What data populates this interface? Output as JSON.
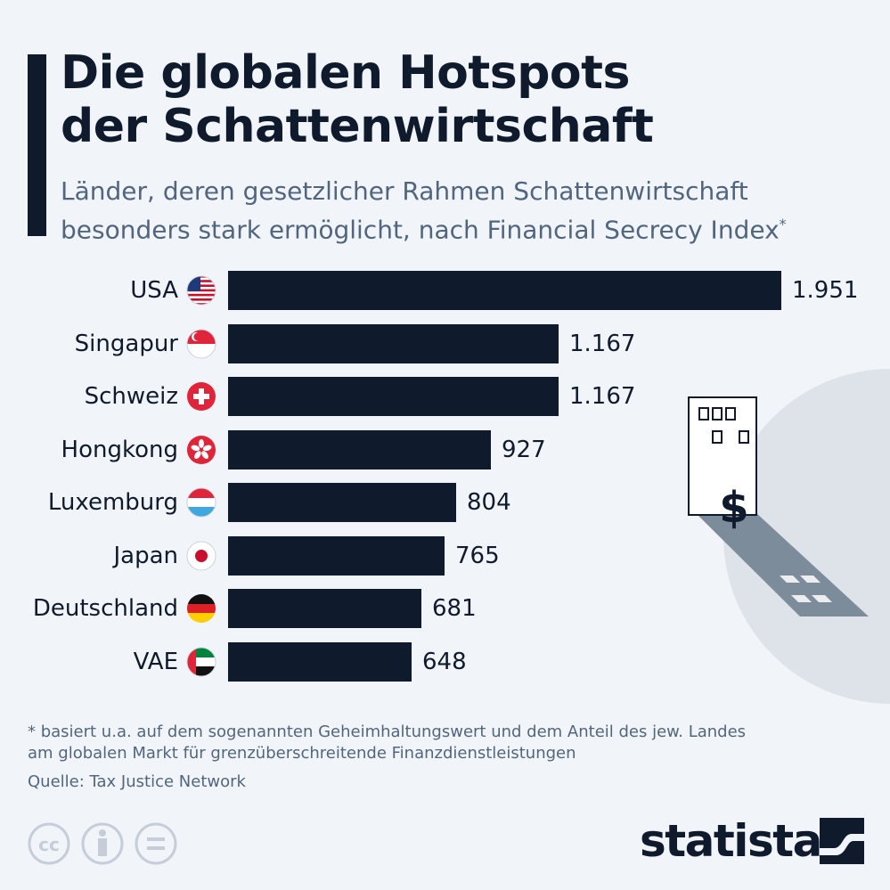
{
  "header": {
    "title_line1": "Die globalen Hotspots",
    "title_line2": "der Schattenwirtschaft",
    "subtitle_line1": "Länder, deren gesetzlicher Rahmen Schattenwirtschaft",
    "subtitle_line2": "besonders stark ermöglicht, nach Financial Secrecy Index",
    "subtitle_mark": "*"
  },
  "chart_data": {
    "type": "bar",
    "orientation": "horizontal",
    "categories": [
      "USA",
      "Singapur",
      "Schweiz",
      "Hongkong",
      "Luxemburg",
      "Japan",
      "Deutschland",
      "VAE"
    ],
    "value_labels": [
      "1.951",
      "1.167",
      "1.167",
      "927",
      "804",
      "765",
      "681",
      "648"
    ],
    "values": [
      1951,
      1167,
      1167,
      927,
      804,
      765,
      681,
      648
    ],
    "bar_color": "#0f1b2d",
    "title": "Die globalen Hotspots der Schattenwirtschaft",
    "xlim": [
      0,
      1951
    ]
  },
  "flags": [
    "us-flag-icon",
    "singapore-flag-icon",
    "switzerland-flag-icon",
    "hongkong-flag-icon",
    "luxembourg-flag-icon",
    "japan-flag-icon",
    "germany-flag-icon",
    "uae-flag-icon"
  ],
  "footer": {
    "footnote": "* basiert u.a. auf dem sogenannten Geheimhaltungswert und dem Anteil des jew. Landes\n   am globalen Markt für grenzüberschreitende Finanzdienstleistungen",
    "source": "Quelle: Tax Justice Network",
    "brand": "statista",
    "illustration_sign": "$"
  },
  "colors": {
    "navy": "#0f1b2d",
    "muted": "#51667e",
    "background": "#f1f5f9",
    "circle": "#dde3e8",
    "shadow": "#7d8c9b"
  }
}
